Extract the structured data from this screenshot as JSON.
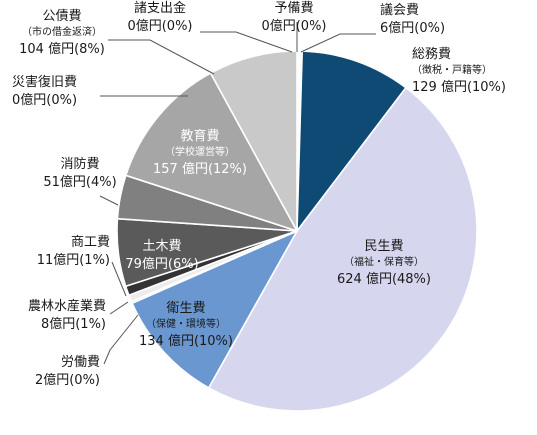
{
  "chart_data": {
    "type": "pie",
    "title": "",
    "unit": "億円",
    "start_angle_deg": 0,
    "direction": "clockwise",
    "slices": [
      {
        "name": "予備費",
        "sub": "",
        "value": 0,
        "pct": "0%",
        "color": "#ffffff"
      },
      {
        "name": "議会費",
        "sub": "",
        "value": 6,
        "pct": "0%",
        "color": "#ffffff"
      },
      {
        "name": "総務費",
        "sub": "（徴税・戸籍等）",
        "value": 129,
        "pct": "10%",
        "color": "#0e4a73"
      },
      {
        "name": "民生費",
        "sub": "（福祉・保育等）",
        "value": 624,
        "pct": "48%",
        "color": "#d6d7ee"
      },
      {
        "name": "衛生費",
        "sub": "（保健・環境等）",
        "value": 134,
        "pct": "10%",
        "color": "#6a97d0"
      },
      {
        "name": "労働費",
        "sub": "",
        "value": 2,
        "pct": "0%",
        "color": "#3f5f9e"
      },
      {
        "name": "農林水産業費",
        "sub": "",
        "value": 8,
        "pct": "1%",
        "color": "#ececec"
      },
      {
        "name": "商工費",
        "sub": "",
        "value": 11,
        "pct": "1%",
        "color": "#333333"
      },
      {
        "name": "土木費",
        "sub": "",
        "value": 79,
        "pct": "6%",
        "color": "#5a5a5a"
      },
      {
        "name": "消防費",
        "sub": "",
        "value": 51,
        "pct": "4%",
        "color": "#808080"
      },
      {
        "name": "教育費",
        "sub": "（学校運営等）",
        "value": 157,
        "pct": "12%",
        "color": "#a6a6a6"
      },
      {
        "name": "災害復旧費",
        "sub": "",
        "value": 0,
        "pct": "0%",
        "color": "#ffffff"
      },
      {
        "name": "公債費",
        "sub": "（市の借金返済）",
        "value": 104,
        "pct": "8%",
        "color": "#c9c9c9"
      },
      {
        "name": "諸支出金",
        "sub": "",
        "value": 0,
        "pct": "0%",
        "color": "#ffffff"
      }
    ]
  }
}
